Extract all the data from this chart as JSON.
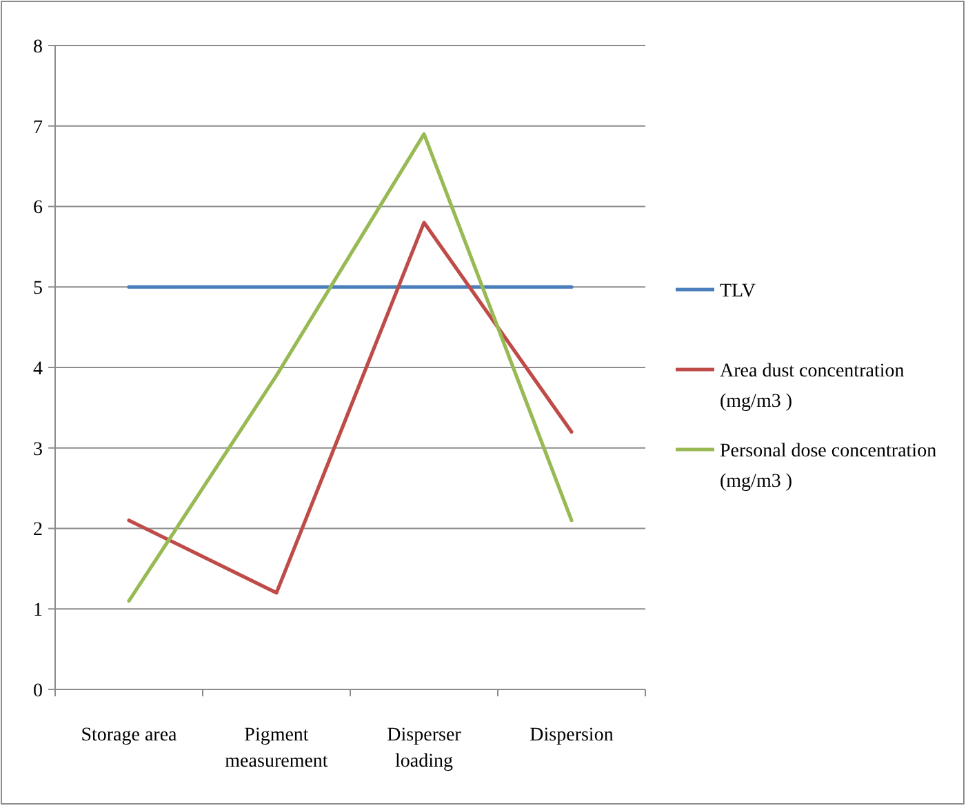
{
  "chart_data": {
    "type": "line",
    "categories": [
      "Storage area",
      "Pigment measurement",
      "Disperser loading",
      "Dispersion"
    ],
    "series": [
      {
        "name": "TLV",
        "color": "#4a7ebb",
        "values": [
          5,
          5,
          5,
          5
        ]
      },
      {
        "name": "Area dust concentration (mg/m3  )",
        "color": "#be4b48",
        "values": [
          2.1,
          1.2,
          5.8,
          3.2
        ]
      },
      {
        "name": "Personal dose concentration (mg/m3  )",
        "color": "#98b954",
        "values": [
          1.1,
          3.9,
          6.9,
          2.1
        ]
      }
    ],
    "ylim": [
      0,
      8
    ],
    "yticks": [
      0,
      1,
      2,
      3,
      4,
      5,
      6,
      7,
      8
    ],
    "grid": "y",
    "legend": "right",
    "marker": "none",
    "line_style": "solid"
  }
}
